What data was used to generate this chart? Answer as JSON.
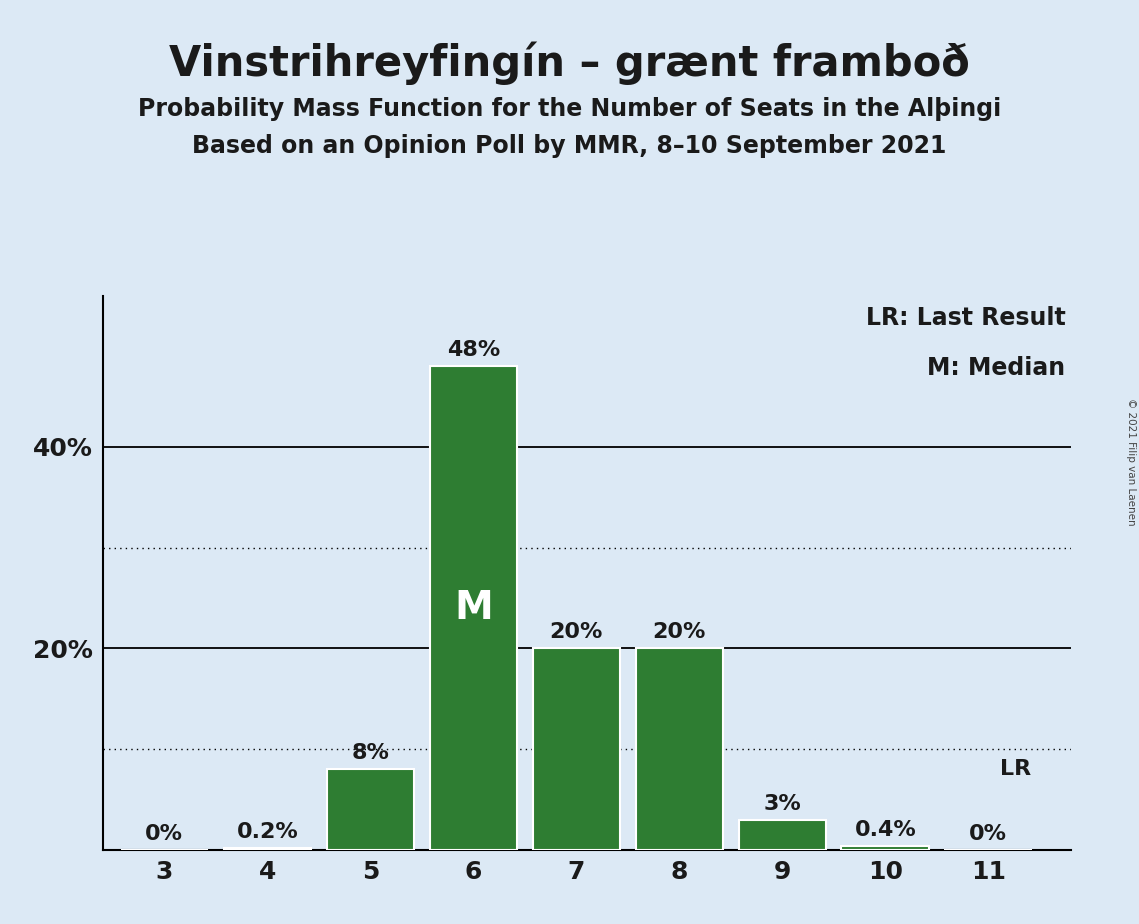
{
  "title": "Vinstrihreyfingín – grænt framboð",
  "subtitle1": "Probability Mass Function for the Number of Seats in the Alþingi",
  "subtitle2": "Based on an Opinion Poll by MMR, 8–10 September 2021",
  "copyright": "© 2021 Filip van Laenen",
  "categories": [
    3,
    4,
    5,
    6,
    7,
    8,
    9,
    10,
    11
  ],
  "values": [
    0.0,
    0.2,
    8.0,
    48.0,
    20.0,
    20.0,
    3.0,
    0.4,
    0.0
  ],
  "labels": [
    "0%",
    "0.2%",
    "8%",
    "48%",
    "20%",
    "20%",
    "3%",
    "0.4%",
    "0%"
  ],
  "bar_color": "#2e7d32",
  "bar_edge_color": "#ffffff",
  "background_color": "#dce9f5",
  "title_color": "#1a1a1a",
  "label_color": "#1a1a1a",
  "median_seat": 6,
  "median_label": "M",
  "median_label_color": "#ffffff",
  "lr_seat": 11,
  "lr_label": "LR",
  "dotted_line_values": [
    10.0,
    30.0
  ],
  "solid_line_values": [
    20.0,
    40.0
  ],
  "ytick_positions": [
    20,
    40
  ],
  "ytick_labels": [
    "20%",
    "40%"
  ],
  "ylim": [
    0,
    55
  ],
  "xlim_left": 2.4,
  "xlim_right": 11.8,
  "legend_lr": "LR: Last Result",
  "legend_m": "M: Median",
  "title_fontsize": 30,
  "subtitle_fontsize": 17,
  "label_fontsize": 16,
  "tick_fontsize": 18,
  "legend_fontsize": 17,
  "median_fontsize": 28
}
